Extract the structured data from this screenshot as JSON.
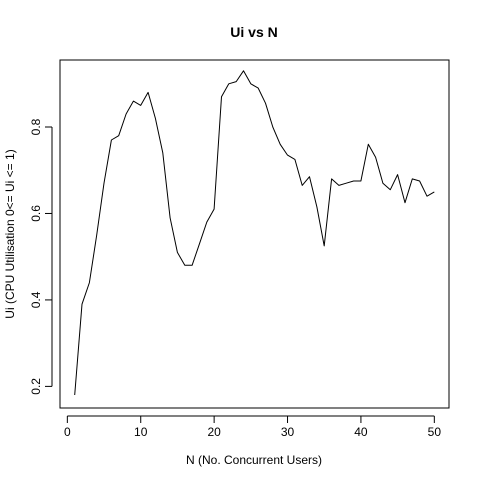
{
  "chart_data": {
    "type": "line",
    "title": "Ui vs N",
    "xlabel": "N (No. Concurrent Users)",
    "ylabel": "Ui (CPU Utilisation 0<= Ui <= 1)",
    "xlim": [
      -1,
      52
    ],
    "ylim": [
      0.15,
      0.955
    ],
    "xticks": [
      0,
      10,
      20,
      30,
      40,
      50
    ],
    "yticks": [
      0.2,
      0.4,
      0.6,
      0.8
    ],
    "xtick_labels": [
      "0",
      "10",
      "20",
      "30",
      "40",
      "50"
    ],
    "ytick_labels": [
      "0.2",
      "0.4",
      "0.6",
      "0.8"
    ],
    "grid": false,
    "line_color": "#000000",
    "series": [
      {
        "x": [
          1,
          2,
          3,
          4,
          5,
          6,
          7,
          8,
          9,
          10,
          11,
          12,
          13,
          14,
          15,
          16,
          17,
          18,
          19,
          20,
          21,
          22,
          23,
          24,
          25,
          26,
          27,
          28,
          29,
          30,
          31,
          32,
          33,
          34,
          35,
          36,
          37,
          38,
          39,
          40,
          41,
          42,
          43,
          44,
          45,
          46,
          47,
          48,
          49,
          50
        ],
        "y": [
          0.18,
          0.39,
          0.44,
          0.55,
          0.67,
          0.77,
          0.78,
          0.83,
          0.86,
          0.85,
          0.88,
          0.82,
          0.74,
          0.59,
          0.51,
          0.48,
          0.48,
          0.53,
          0.58,
          0.61,
          0.87,
          0.9,
          0.905,
          0.93,
          0.9,
          0.89,
          0.855,
          0.8,
          0.76,
          0.735,
          0.725,
          0.665,
          0.685,
          0.615,
          0.525,
          0.68,
          0.665,
          0.67,
          0.675,
          0.675,
          0.76,
          0.73,
          0.67,
          0.655,
          0.69,
          0.625,
          0.68,
          0.675,
          0.64,
          0.65
        ]
      }
    ]
  }
}
